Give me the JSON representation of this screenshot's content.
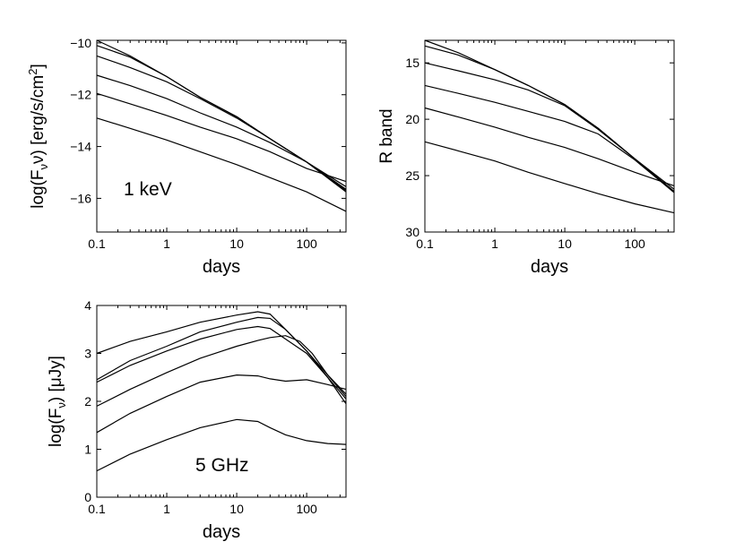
{
  "chart_data": [
    {
      "type": "line",
      "id": "xray",
      "annotation": "1 keV",
      "xlabel": "days",
      "ylabel": "log(F_ν ν) [erg/s/cm²]",
      "ylabel_parts": [
        "log(F",
        "ν",
        "ν) [erg/s/cm",
        "2",
        "]"
      ],
      "xscale": "log",
      "xlim": [
        0.1,
        365
      ],
      "ylim": [
        -17.3,
        -9.9
      ],
      "yreversed": false,
      "xticks": [
        {
          "v": 0.1,
          "label": "0.1"
        },
        {
          "v": 1,
          "label": "1"
        },
        {
          "v": 10,
          "label": "10"
        },
        {
          "v": 100,
          "label": "100"
        }
      ],
      "yticks": [
        {
          "v": -10,
          "label": "−10"
        },
        {
          "v": -12,
          "label": "−12"
        },
        {
          "v": -14,
          "label": "−14"
        },
        {
          "v": -16,
          "label": "−16"
        }
      ],
      "series": [
        {
          "name": "curve-1",
          "x": [
            0.1,
            0.3,
            1,
            3,
            10,
            30,
            100,
            365
          ],
          "y": [
            -9.9,
            -10.5,
            -11.3,
            -12.1,
            -12.85,
            -13.7,
            -14.6,
            -15.7
          ]
        },
        {
          "name": "curve-2",
          "x": [
            0.1,
            0.3,
            1,
            3,
            10,
            30,
            100,
            365
          ],
          "y": [
            -10.1,
            -10.55,
            -11.3,
            -12.1,
            -12.85,
            -13.7,
            -14.6,
            -15.65
          ]
        },
        {
          "name": "curve-3",
          "x": [
            0.1,
            0.3,
            1,
            3,
            10,
            30,
            100,
            365
          ],
          "y": [
            -10.5,
            -10.95,
            -11.5,
            -12.15,
            -12.9,
            -13.7,
            -14.6,
            -15.75
          ]
        },
        {
          "name": "curve-4",
          "x": [
            0.1,
            0.3,
            1,
            3,
            10,
            30,
            100,
            365
          ],
          "y": [
            -11.25,
            -11.65,
            -12.15,
            -12.7,
            -13.25,
            -13.85,
            -14.6,
            -15.55
          ]
        },
        {
          "name": "curve-5",
          "x": [
            0.1,
            0.3,
            1,
            3,
            10,
            30,
            100,
            365
          ],
          "y": [
            -11.95,
            -12.35,
            -12.8,
            -13.25,
            -13.7,
            -14.2,
            -14.85,
            -15.35
          ]
        },
        {
          "name": "curve-6",
          "x": [
            0.1,
            0.3,
            1,
            3,
            10,
            30,
            100,
            365
          ],
          "y": [
            -12.9,
            -13.3,
            -13.75,
            -14.2,
            -14.7,
            -15.2,
            -15.75,
            -16.5
          ]
        }
      ]
    },
    {
      "type": "line",
      "id": "optical",
      "annotation": "",
      "xlabel": "days",
      "ylabel": "R band",
      "xscale": "log",
      "xlim": [
        0.1,
        365
      ],
      "ylim": [
        13,
        30
      ],
      "yreversed": true,
      "xticks": [
        {
          "v": 0.1,
          "label": "0.1"
        },
        {
          "v": 1,
          "label": "1"
        },
        {
          "v": 10,
          "label": "10"
        },
        {
          "v": 100,
          "label": "100"
        }
      ],
      "yticks": [
        {
          "v": 15,
          "label": "15"
        },
        {
          "v": 20,
          "label": "20"
        },
        {
          "v": 25,
          "label": "25"
        },
        {
          "v": 30,
          "label": "30"
        }
      ],
      "series": [
        {
          "name": "curve-1",
          "x": [
            0.1,
            0.3,
            1,
            3,
            10,
            30,
            100,
            365
          ],
          "y": [
            13.0,
            14.1,
            15.6,
            17.0,
            18.7,
            20.8,
            23.5,
            26.4
          ]
        },
        {
          "name": "curve-2",
          "x": [
            0.1,
            0.3,
            1,
            3,
            10,
            30,
            100,
            365
          ],
          "y": [
            13.5,
            14.3,
            15.6,
            17.0,
            18.7,
            20.8,
            23.5,
            26.4
          ]
        },
        {
          "name": "curve-3",
          "x": [
            0.1,
            0.3,
            1,
            3,
            10,
            30,
            100,
            365
          ],
          "y": [
            15.0,
            15.7,
            16.5,
            17.4,
            18.8,
            20.9,
            23.5,
            26.2
          ]
        },
        {
          "name": "curve-4",
          "x": [
            0.1,
            0.3,
            1,
            3,
            10,
            30,
            100,
            365
          ],
          "y": [
            17.0,
            17.7,
            18.5,
            19.3,
            20.2,
            21.3,
            23.6,
            26.5
          ]
        },
        {
          "name": "curve-5",
          "x": [
            0.1,
            0.3,
            1,
            3,
            10,
            30,
            100,
            365
          ],
          "y": [
            19.0,
            19.8,
            20.7,
            21.6,
            22.5,
            23.5,
            24.7,
            25.9
          ]
        },
        {
          "name": "curve-6",
          "x": [
            0.1,
            0.3,
            1,
            3,
            10,
            30,
            100,
            365
          ],
          "y": [
            22.0,
            22.8,
            23.7,
            24.7,
            25.7,
            26.6,
            27.5,
            28.3
          ]
        }
      ]
    },
    {
      "type": "line",
      "id": "radio",
      "annotation": "5 GHz",
      "xlabel": "days",
      "ylabel": "log(F_ν) [μJy]",
      "ylabel_parts": [
        "log(F",
        "ν",
        ") [μJy]",
        "",
        ""
      ],
      "xscale": "log",
      "xlim": [
        0.1,
        365
      ],
      "ylim": [
        0,
        4
      ],
      "yreversed": false,
      "xticks": [
        {
          "v": 0.1,
          "label": "0.1"
        },
        {
          "v": 1,
          "label": "1"
        },
        {
          "v": 10,
          "label": "10"
        },
        {
          "v": 100,
          "label": "100"
        }
      ],
      "yticks": [
        {
          "v": 0,
          "label": "0"
        },
        {
          "v": 1,
          "label": "1"
        },
        {
          "v": 2,
          "label": "2"
        },
        {
          "v": 3,
          "label": "3"
        },
        {
          "v": 4,
          "label": "4"
        }
      ],
      "series": [
        {
          "name": "curve-1",
          "x": [
            0.1,
            0.3,
            1,
            3,
            10,
            20,
            30,
            50,
            100,
            200,
            365
          ],
          "y": [
            3.0,
            3.25,
            3.45,
            3.65,
            3.8,
            3.87,
            3.82,
            3.5,
            3.05,
            2.5,
            2.05
          ]
        },
        {
          "name": "curve-2",
          "x": [
            0.1,
            0.3,
            1,
            3,
            10,
            20,
            30,
            50,
            100,
            200,
            365
          ],
          "y": [
            2.45,
            2.85,
            3.15,
            3.45,
            3.65,
            3.75,
            3.73,
            3.5,
            3.05,
            2.55,
            2.1
          ]
        },
        {
          "name": "curve-3",
          "x": [
            0.1,
            0.3,
            1,
            3,
            10,
            20,
            30,
            50,
            100,
            200,
            365
          ],
          "y": [
            2.4,
            2.75,
            3.05,
            3.3,
            3.5,
            3.56,
            3.52,
            3.3,
            3.0,
            2.5,
            1.95
          ]
        },
        {
          "name": "curve-4",
          "x": [
            0.1,
            0.3,
            1,
            3,
            10,
            20,
            30,
            50,
            80,
            120,
            200,
            365
          ],
          "y": [
            1.9,
            2.25,
            2.6,
            2.9,
            3.15,
            3.27,
            3.33,
            3.37,
            3.25,
            3.0,
            2.55,
            2.15
          ]
        },
        {
          "name": "curve-5",
          "x": [
            0.1,
            0.3,
            1,
            3,
            10,
            20,
            30,
            50,
            100,
            200,
            365
          ],
          "y": [
            1.35,
            1.75,
            2.1,
            2.4,
            2.55,
            2.53,
            2.47,
            2.42,
            2.45,
            2.35,
            2.25
          ]
        },
        {
          "name": "curve-6",
          "x": [
            0.1,
            0.3,
            1,
            3,
            10,
            20,
            30,
            50,
            100,
            200,
            365
          ],
          "y": [
            0.55,
            0.9,
            1.2,
            1.45,
            1.62,
            1.58,
            1.45,
            1.3,
            1.18,
            1.12,
            1.1
          ]
        }
      ]
    }
  ]
}
